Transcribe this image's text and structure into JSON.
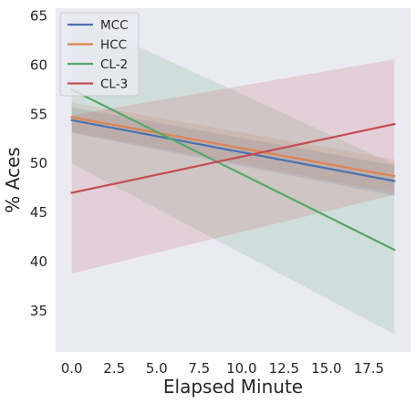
{
  "chart_data": {
    "type": "line",
    "title": "",
    "xlabel": "Elapsed Minute",
    "ylabel": "% Aces",
    "xlim": [
      -0.95,
      19.95
    ],
    "ylim": [
      30.8,
      65.8
    ],
    "x_ticks": [
      0.0,
      2.5,
      5.0,
      7.5,
      10.0,
      12.5,
      15.0,
      17.5
    ],
    "x_tick_labels": [
      "0.0",
      "2.5",
      "5.0",
      "7.5",
      "10.0",
      "12.5",
      "15.0",
      "17.5"
    ],
    "y_ticks": [
      35,
      40,
      45,
      50,
      55,
      60,
      65
    ],
    "y_tick_labels": [
      "35",
      "40",
      "45",
      "50",
      "55",
      "60",
      "65"
    ],
    "grid": false,
    "background": "#eaeaf2",
    "legend_position": "top-left",
    "x": [
      0,
      19
    ],
    "series": [
      {
        "name": "MCC",
        "color": "#4c72b0",
        "values": [
          54.4,
          48.2
        ],
        "ci_lower": [
          53.1,
          46.7
        ],
        "ci_upper": [
          55.7,
          49.8
        ]
      },
      {
        "name": "HCC",
        "color": "#dd8452",
        "values": [
          54.7,
          48.7
        ],
        "ci_lower": [
          53.2,
          47.0
        ],
        "ci_upper": [
          56.2,
          50.4
        ]
      },
      {
        "name": "CL-2",
        "color": "#55a868",
        "values": [
          57.5,
          41.2
        ],
        "ci_lower": [
          50.0,
          32.6
        ],
        "ci_upper": [
          65.0,
          49.9
        ]
      },
      {
        "name": "CL-3",
        "color": "#c44e52",
        "values": [
          47.0,
          54.0
        ],
        "ci_lower": [
          38.8,
          46.8
        ],
        "ci_upper": [
          54.9,
          60.6
        ]
      }
    ]
  }
}
